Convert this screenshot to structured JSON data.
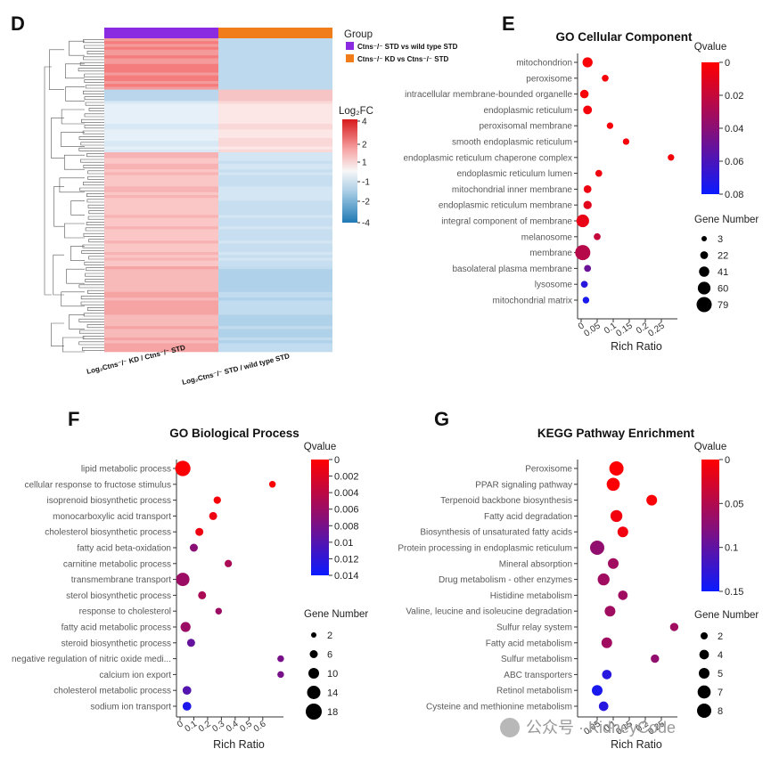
{
  "panels": {
    "D": {
      "letter": "D",
      "group_title": "Group",
      "groups": [
        {
          "label": "Ctns⁻/⁻ STD vs wild type STD",
          "color": "#8a2be2"
        },
        {
          "label": "Ctns⁻/⁻ KD vs Ctns⁻/⁻ STD",
          "color": "#f07d1a"
        }
      ],
      "columns": [
        "Log₂Ctns⁻/⁻ KD / Ctns⁻/⁻ STD",
        "Log₂Ctns⁻/⁻ STD / wild type STD"
      ],
      "legend_title": "Log₂FC",
      "legend_ticks": [
        "4",
        "2",
        "1",
        "-1",
        "-2",
        "-4"
      ]
    },
    "E": {
      "letter": "E"
    },
    "F": {
      "letter": "F"
    },
    "G": {
      "letter": "G"
    }
  },
  "watermark": "公众号 · KidneyCode",
  "chart_data": [
    {
      "id": "E",
      "type": "scatter",
      "title": "GO Cellular Component",
      "xlabel": "Rich Ratio",
      "xlim": [
        0,
        0.3
      ],
      "xticks": [
        0,
        0.05,
        0.1,
        0.15,
        0.2,
        0.25
      ],
      "xticklabels": [
        "0",
        "0.05",
        "0.1",
        "0.15",
        "0.2",
        "0.25"
      ],
      "qvalue_legend": {
        "title": "Qvalue",
        "range": [
          0,
          0.08
        ],
        "ticks": [
          "0",
          "0.02",
          "0.04",
          "0.06",
          "0.08"
        ]
      },
      "size_legend": {
        "title": "Gene Number",
        "values": [
          3,
          22,
          41,
          60,
          79
        ]
      },
      "points": [
        {
          "term": "mitochondrion",
          "rich_ratio": 0.02,
          "qvalue": 0.002,
          "gene_number": 40
        },
        {
          "term": "peroxisome",
          "rich_ratio": 0.075,
          "qvalue": 0.003,
          "gene_number": 14
        },
        {
          "term": "intracellular membrane-bounded organelle",
          "rich_ratio": 0.01,
          "qvalue": 0.002,
          "gene_number": 28
        },
        {
          "term": "endoplasmic reticulum",
          "rich_ratio": 0.02,
          "qvalue": 0.003,
          "gene_number": 30
        },
        {
          "term": "peroxisomal membrane",
          "rich_ratio": 0.09,
          "qvalue": 0.003,
          "gene_number": 12
        },
        {
          "term": "smooth endoplasmic reticulum",
          "rich_ratio": 0.14,
          "qvalue": 0.003,
          "gene_number": 12
        },
        {
          "term": "endoplasmic reticulum chaperone complex",
          "rich_ratio": 0.28,
          "qvalue": 0.003,
          "gene_number": 12
        },
        {
          "term": "endoplasmic reticulum lumen",
          "rich_ratio": 0.055,
          "qvalue": 0.005,
          "gene_number": 15
        },
        {
          "term": "mitochondrial inner membrane",
          "rich_ratio": 0.02,
          "qvalue": 0.006,
          "gene_number": 22
        },
        {
          "term": "endoplasmic reticulum membrane",
          "rich_ratio": 0.02,
          "qvalue": 0.01,
          "gene_number": 26
        },
        {
          "term": "integral component of membrane",
          "rich_ratio": 0.005,
          "qvalue": 0.008,
          "gene_number": 60
        },
        {
          "term": "melanosome",
          "rich_ratio": 0.05,
          "qvalue": 0.02,
          "gene_number": 15
        },
        {
          "term": "membrane",
          "rich_ratio": 0.005,
          "qvalue": 0.025,
          "gene_number": 79
        },
        {
          "term": "basolateral plasma membrane",
          "rich_ratio": 0.02,
          "qvalue": 0.05,
          "gene_number": 15
        },
        {
          "term": "lysosome",
          "rich_ratio": 0.01,
          "qvalue": 0.07,
          "gene_number": 15
        },
        {
          "term": "mitochondrial matrix",
          "rich_ratio": 0.015,
          "qvalue": 0.075,
          "gene_number": 13
        }
      ]
    },
    {
      "id": "F",
      "type": "scatter",
      "title": "GO Biological Process",
      "xlabel": "Rich Ratio",
      "xlim": [
        0,
        0.75
      ],
      "xticks": [
        0,
        0.1,
        0.2,
        0.3,
        0.4,
        0.5,
        0.6
      ],
      "xticklabels": [
        "0",
        "0.1",
        "0.2",
        "0.3",
        "0.4",
        "0.5",
        "0.6"
      ],
      "qvalue_legend": {
        "title": "Qvalue",
        "range": [
          0,
          0.014
        ],
        "ticks": [
          "0",
          "0.002",
          "0.004",
          "0.006",
          "0.008",
          "0.01",
          "0.012",
          "0.014"
        ]
      },
      "size_legend": {
        "title": "Gene Number",
        "values": [
          2,
          6,
          10,
          14,
          18
        ]
      },
      "points": [
        {
          "term": "lipid metabolic process",
          "rich_ratio": 0.02,
          "qvalue": 0.0003,
          "gene_number": 17
        },
        {
          "term": "cellular response to fructose stimulus",
          "rich_ratio": 0.67,
          "qvalue": 0.0002,
          "gene_number": 4
        },
        {
          "term": "isoprenoid biosynthetic process",
          "rich_ratio": 0.27,
          "qvalue": 0.0005,
          "gene_number": 5
        },
        {
          "term": "monocarboxylic acid transport",
          "rich_ratio": 0.24,
          "qvalue": 0.001,
          "gene_number": 6
        },
        {
          "term": "cholesterol biosynthetic process",
          "rich_ratio": 0.14,
          "qvalue": 0.001,
          "gene_number": 6
        },
        {
          "term": "fatty acid beta-oxidation",
          "rich_ratio": 0.1,
          "qvalue": 0.007,
          "gene_number": 6
        },
        {
          "term": "carnitine metabolic process",
          "rich_ratio": 0.35,
          "qvalue": 0.005,
          "gene_number": 5
        },
        {
          "term": "transmembrane transport",
          "rich_ratio": 0.02,
          "qvalue": 0.006,
          "gene_number": 14
        },
        {
          "term": "sterol biosynthetic process",
          "rich_ratio": 0.16,
          "qvalue": 0.005,
          "gene_number": 6
        },
        {
          "term": "response to cholesterol",
          "rich_ratio": 0.28,
          "qvalue": 0.006,
          "gene_number": 4
        },
        {
          "term": "fatty acid metabolic process",
          "rich_ratio": 0.04,
          "qvalue": 0.006,
          "gene_number": 9
        },
        {
          "term": "steroid biosynthetic process",
          "rich_ratio": 0.08,
          "qvalue": 0.009,
          "gene_number": 6
        },
        {
          "term": "negative regulation of nitric oxide medi...",
          "rich_ratio": 0.73,
          "qvalue": 0.008,
          "gene_number": 4
        },
        {
          "term": "calcium ion export",
          "rich_ratio": 0.73,
          "qvalue": 0.008,
          "gene_number": 4
        },
        {
          "term": "cholesterol metabolic process",
          "rich_ratio": 0.05,
          "qvalue": 0.01,
          "gene_number": 7
        },
        {
          "term": "sodium ion transport",
          "rich_ratio": 0.05,
          "qvalue": 0.013,
          "gene_number": 7
        }
      ]
    },
    {
      "id": "G",
      "type": "scatter",
      "title": "KEGG Pathway Enrichment",
      "xlabel": "Rich Ratio",
      "xlim": [
        0,
        0.3
      ],
      "xticks": [
        0.05,
        0.1,
        0.15,
        0.2,
        0.25
      ],
      "xticklabels": [
        "0.05",
        "0.1",
        "0.15",
        "0.2",
        "0.25"
      ],
      "qvalue_legend": {
        "title": "Qvalue",
        "range": [
          0,
          0.17
        ],
        "ticks": [
          "0",
          "0.05",
          "0.1",
          "0.15"
        ]
      },
      "size_legend": {
        "title": "Gene Number",
        "values": [
          2,
          4,
          5,
          7,
          8
        ]
      },
      "points": [
        {
          "term": "Peroxisome",
          "rich_ratio": 0.11,
          "qvalue": 0.002,
          "gene_number": 8
        },
        {
          "term": "PPAR signaling pathway",
          "rich_ratio": 0.1,
          "qvalue": 0.002,
          "gene_number": 7
        },
        {
          "term": "Terpenoid backbone biosynthesis",
          "rich_ratio": 0.22,
          "qvalue": 0.004,
          "gene_number": 5
        },
        {
          "term": "Fatty acid degradation",
          "rich_ratio": 0.11,
          "qvalue": 0.01,
          "gene_number": 6
        },
        {
          "term": "Biosynthesis of unsaturated fatty acids",
          "rich_ratio": 0.13,
          "qvalue": 0.01,
          "gene_number": 5
        },
        {
          "term": "Protein processing in endoplasmic reticulum",
          "rich_ratio": 0.05,
          "qvalue": 0.08,
          "gene_number": 8
        },
        {
          "term": "Mineral absorption",
          "rich_ratio": 0.1,
          "qvalue": 0.07,
          "gene_number": 5
        },
        {
          "term": "Drug metabolism - other enzymes",
          "rich_ratio": 0.07,
          "qvalue": 0.07,
          "gene_number": 6
        },
        {
          "term": "Histidine metabolism",
          "rich_ratio": 0.13,
          "qvalue": 0.07,
          "gene_number": 4
        },
        {
          "term": "Valine, leucine and isoleucine degradation",
          "rich_ratio": 0.09,
          "qvalue": 0.07,
          "gene_number": 5
        },
        {
          "term": "Sulfur relay system",
          "rich_ratio": 0.29,
          "qvalue": 0.07,
          "gene_number": 3
        },
        {
          "term": "Fatty acid metabolism",
          "rich_ratio": 0.08,
          "qvalue": 0.07,
          "gene_number": 5
        },
        {
          "term": "Sulfur metabolism",
          "rich_ratio": 0.23,
          "qvalue": 0.08,
          "gene_number": 3
        },
        {
          "term": "ABC transporters",
          "rich_ratio": 0.08,
          "qvalue": 0.15,
          "gene_number": 4
        },
        {
          "term": "Retinol metabolism",
          "rich_ratio": 0.05,
          "qvalue": 0.16,
          "gene_number": 5
        },
        {
          "term": "Cysteine and methionine metabolism",
          "rich_ratio": 0.07,
          "qvalue": 0.15,
          "gene_number": 4
        }
      ]
    }
  ]
}
